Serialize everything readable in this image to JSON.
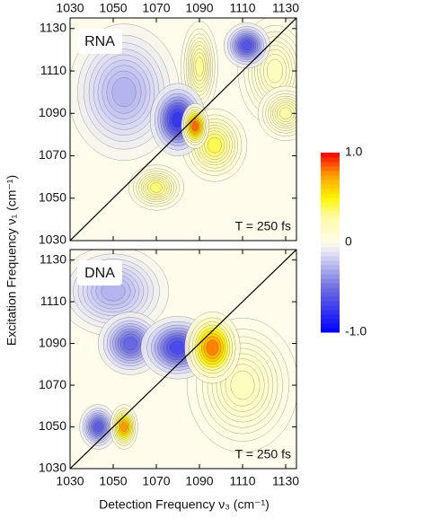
{
  "chart_data": [
    {
      "type": "contour",
      "label": "RNA",
      "annotation": "T = 250 fs",
      "xlim": [
        1030,
        1135
      ],
      "ylim": [
        1030,
        1135
      ],
      "xticks": [
        1030,
        1050,
        1070,
        1090,
        1110,
        1130
      ],
      "yticks": [
        1030,
        1050,
        1070,
        1090,
        1110,
        1130
      ],
      "diagonal": true,
      "peaks": [
        {
          "x": 1055,
          "y": 1100,
          "sx": 12,
          "sy": 15,
          "value": -0.3
        },
        {
          "x": 1125,
          "y": 1110,
          "sx": 8,
          "sy": 12,
          "value": 0.2
        },
        {
          "x": 1130,
          "y": 1090,
          "sx": 6,
          "sy": 6,
          "value": 0.3
        },
        {
          "x": 1090,
          "y": 1112,
          "sx": 4,
          "sy": 10,
          "value": 0.35
        },
        {
          "x": 1097,
          "y": 1075,
          "sx": 7,
          "sy": 8,
          "value": 0.45
        },
        {
          "x": 1070,
          "y": 1055,
          "sx": 6,
          "sy": 5,
          "value": 0.4
        },
        {
          "x": 1080,
          "y": 1087,
          "sx": 6,
          "sy": 8,
          "value": -0.85
        },
        {
          "x": 1112,
          "y": 1122,
          "sx": 5,
          "sy": 5,
          "value": -0.7
        },
        {
          "x": 1088,
          "y": 1084,
          "sx": 3,
          "sy": 5,
          "value": 0.95
        }
      ]
    },
    {
      "type": "contour",
      "label": "DNA",
      "annotation": "T = 250 fs",
      "xlim": [
        1030,
        1135
      ],
      "ylim": [
        1030,
        1135
      ],
      "xticks": [
        1030,
        1050,
        1070,
        1090,
        1110,
        1130
      ],
      "yticks": [
        1030,
        1050,
        1070,
        1090,
        1110,
        1130
      ],
      "diagonal": true,
      "peaks": [
        {
          "x": 1110,
          "y": 1070,
          "sx": 12,
          "sy": 15,
          "value": 0.2
        },
        {
          "x": 1050,
          "y": 1115,
          "sx": 12,
          "sy": 10,
          "value": -0.3
        },
        {
          "x": 1058,
          "y": 1090,
          "sx": 7,
          "sy": 7,
          "value": -0.6
        },
        {
          "x": 1080,
          "y": 1088,
          "sx": 8,
          "sy": 7,
          "value": -0.75
        },
        {
          "x": 1043,
          "y": 1050,
          "sx": 4,
          "sy": 5,
          "value": -0.65
        },
        {
          "x": 1096,
          "y": 1088,
          "sx": 6,
          "sy": 8,
          "value": 0.9
        },
        {
          "x": 1055,
          "y": 1050,
          "sx": 3,
          "sy": 5,
          "value": 0.85
        }
      ]
    },
    {
      "type": "colorbar",
      "lim": [
        -1,
        1
      ],
      "ticks": [
        {
          "value": 1,
          "label": "1.0"
        },
        {
          "value": 0,
          "label": "0"
        },
        {
          "value": -1,
          "label": "-1.0"
        }
      ]
    },
    {
      "type": "axis-titles",
      "xlabel": "Detection Frequency ν₃ (cm⁻¹)",
      "ylabel": "Excitation Frequency ν₁ (cm⁻¹)"
    }
  ]
}
